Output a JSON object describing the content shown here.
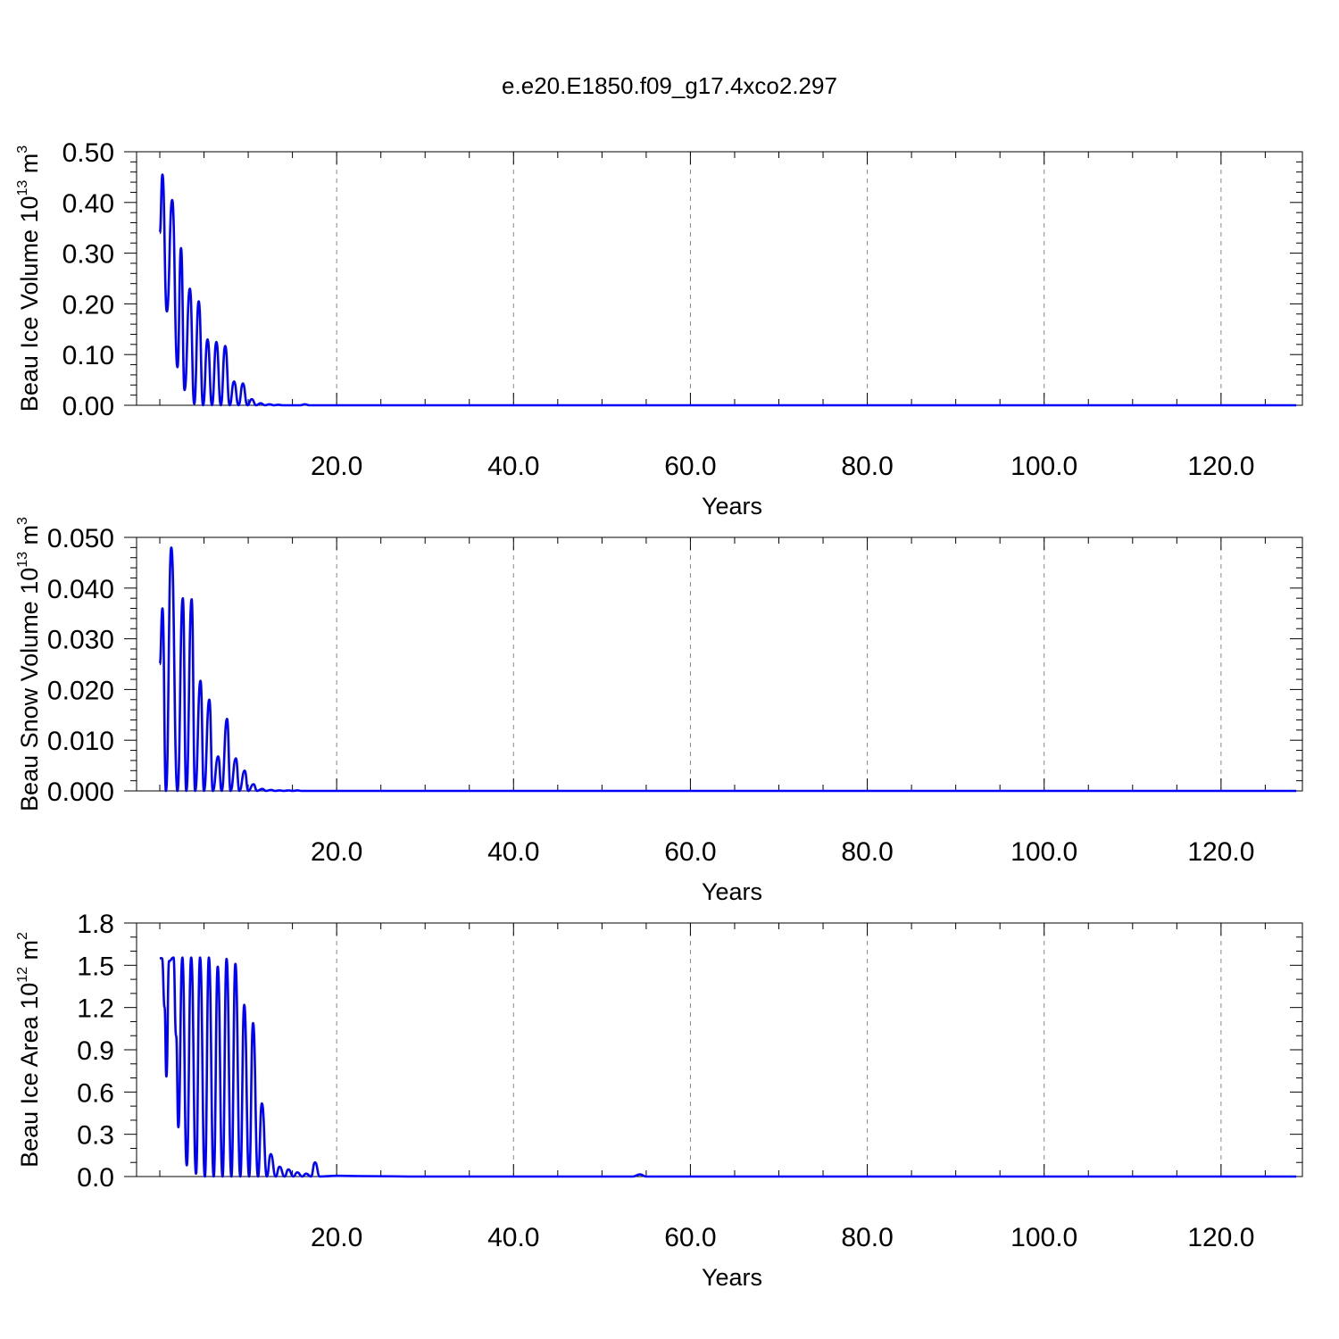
{
  "title": "e.e20.E1850.f09_g17.4xco2.297",
  "colors": {
    "series": "#0000ff",
    "grid": "#888888",
    "frame": "#000000"
  },
  "chart_data": [
    {
      "type": "line",
      "title": "",
      "xlabel": "Years",
      "ylabel": {
        "prefix": "Beau Ice Volume 10",
        "exp": "13",
        "unit": " m",
        "unit_exp": "3"
      },
      "xlim": [
        -0.2,
        129.2
      ],
      "ylim": [
        0,
        0.5
      ],
      "grid": "vertical dashed",
      "x_ticks": [
        20,
        40,
        60,
        80,
        100,
        120
      ],
      "x_tick_labels": [
        "20.0",
        "40.0",
        "60.0",
        "80.0",
        "100.0",
        "120.0"
      ],
      "y_ticks": [
        0,
        0.1,
        0.2,
        0.3,
        0.4,
        0.5
      ],
      "y_tick_labels": [
        "0.00",
        "0.10",
        "0.20",
        "0.30",
        "0.40",
        "0.50"
      ],
      "series": [
        {
          "x": [
            0.0,
            0.3,
            0.8,
            1.4,
            2.0,
            2.4,
            2.8,
            3.4,
            3.9,
            4.4,
            4.9,
            5.4,
            5.9,
            6.4,
            6.9,
            7.4,
            7.9,
            8.4,
            8.9,
            9.4,
            9.9,
            10.4,
            10.9,
            11.4,
            11.9,
            12.4,
            12.9,
            13.4,
            13.9,
            14.4,
            14.9,
            15.4,
            15.9,
            16.4,
            16.9,
            17.4,
            17.9,
            18.4,
            18.9,
            19.4,
            19.9,
            20.4,
            20.9,
            30,
            40,
            50,
            60,
            70,
            80,
            90,
            100,
            110,
            120,
            128.5
          ],
          "y": [
            0.34,
            0.455,
            0.185,
            0.405,
            0.075,
            0.31,
            0.03,
            0.23,
            0.003,
            0.205,
            0.0,
            0.13,
            0.0,
            0.125,
            0.0,
            0.117,
            0.0,
            0.047,
            0.0,
            0.043,
            0.0,
            0.012,
            0.0,
            0.004,
            0.0,
            0.002,
            0.0,
            0.001,
            0.0,
            0.0,
            0.0,
            0.0,
            0.0,
            0.002,
            0.0,
            0.0,
            0.0,
            0.0,
            0.0,
            0.0,
            0.0,
            0.0,
            0.0,
            0.0,
            0.0,
            0.0,
            0.0,
            0.0,
            0.0,
            0.0,
            0.0,
            0.0,
            0.0,
            0.0
          ]
        }
      ]
    },
    {
      "type": "line",
      "title": "",
      "xlabel": "Years",
      "ylabel": {
        "prefix": "Beau Snow Volume 10",
        "exp": "13",
        "unit": " m",
        "unit_exp": "3"
      },
      "xlim": [
        -0.2,
        129.2
      ],
      "ylim": [
        0,
        0.05
      ],
      "grid": "vertical dashed",
      "x_ticks": [
        20,
        40,
        60,
        80,
        100,
        120
      ],
      "x_tick_labels": [
        "20.0",
        "40.0",
        "60.0",
        "80.0",
        "100.0",
        "120.0"
      ],
      "y_ticks": [
        0,
        0.01,
        0.02,
        0.03,
        0.04,
        0.05
      ],
      "y_tick_labels": [
        "0.000",
        "0.010",
        "0.020",
        "0.030",
        "0.040",
        "0.050"
      ],
      "series": [
        {
          "x": [
            0.0,
            0.3,
            0.7,
            1.3,
            2.0,
            2.6,
            3.0,
            3.6,
            4.0,
            4.6,
            5.0,
            5.6,
            6.0,
            6.6,
            7.0,
            7.6,
            8.0,
            8.6,
            9.0,
            9.6,
            10.0,
            10.6,
            11.0,
            11.6,
            12.0,
            12.6,
            13.0,
            13.6,
            14.0,
            14.6,
            15.0,
            15.6,
            16.0,
            17.0,
            18.0,
            19.0,
            20.0,
            30,
            40,
            50,
            60,
            70,
            80,
            90,
            100,
            110,
            120,
            128.5
          ],
          "y": [
            0.025,
            0.036,
            0.0,
            0.048,
            0.0,
            0.038,
            0.0,
            0.0378,
            0.0,
            0.0217,
            0.0,
            0.018,
            0.0,
            0.0068,
            0.0,
            0.0142,
            0.0,
            0.0064,
            0.0,
            0.004,
            0.0,
            0.0013,
            0.0,
            0.0004,
            0.0,
            0.0002,
            0.0,
            0.0001,
            0.0,
            0.0001,
            0.0,
            0.0001,
            0.0,
            0.0,
            0.0,
            0.0,
            0.0,
            0.0,
            0.0,
            0.0,
            0.0,
            0.0,
            0.0,
            0.0,
            0.0,
            0.0,
            0.0,
            0.0
          ]
        }
      ]
    },
    {
      "type": "line",
      "title": "",
      "xlabel": "Years",
      "ylabel": {
        "prefix": "Beau Ice Area 10",
        "exp": "12",
        "unit": " m",
        "unit_exp": "2"
      },
      "xlim": [
        -0.2,
        129.2
      ],
      "ylim": [
        0,
        1.8
      ],
      "grid": "vertical dashed",
      "x_ticks": [
        20,
        40,
        60,
        80,
        100,
        120
      ],
      "x_tick_labels": [
        "20.0",
        "40.0",
        "60.0",
        "80.0",
        "100.0",
        "120.0"
      ],
      "y_ticks": [
        0,
        0.3,
        0.6,
        0.9,
        1.2,
        1.5,
        1.8
      ],
      "y_tick_labels": [
        "0.0",
        "0.3",
        "0.6",
        "0.9",
        "1.2",
        "1.5",
        "1.8"
      ],
      "series": [
        {
          "x": [
            0.0,
            0.25,
            0.55,
            0.75,
            1.05,
            1.55,
            1.85,
            2.1,
            2.55,
            3.05,
            3.55,
            4.1,
            4.55,
            5.1,
            5.55,
            6.1,
            6.55,
            7.1,
            7.55,
            8.1,
            8.55,
            9.1,
            9.55,
            10.1,
            10.55,
            11.1,
            11.55,
            12.1,
            12.55,
            13.1,
            13.55,
            14.1,
            14.55,
            15.1,
            15.55,
            16.1,
            16.55,
            17.1,
            17.55,
            18.1,
            20,
            22.5,
            30,
            40,
            50,
            53.5,
            54.3,
            55,
            60,
            70,
            80,
            90,
            100,
            110,
            120,
            128.5
          ],
          "y": [
            1.55,
            1.55,
            1.2,
            0.71,
            1.53,
            1.555,
            1.0,
            0.35,
            1.555,
            0.08,
            1.555,
            0.02,
            1.555,
            0.0,
            1.555,
            0.0,
            1.49,
            0.0,
            1.545,
            0.0,
            1.51,
            0.0,
            1.22,
            0.0,
            1.09,
            0.0,
            0.52,
            0.0,
            0.16,
            0.0,
            0.07,
            0.0,
            0.05,
            0.0,
            0.03,
            0.0,
            0.02,
            0.0,
            0.1,
            0.0,
            0.005,
            0.003,
            0.0,
            0.0,
            0.0,
            0.0,
            0.015,
            0.0,
            0.0,
            0.0,
            0.0,
            0.0,
            0.0,
            0.0,
            0.0,
            0.0
          ]
        }
      ]
    }
  ]
}
